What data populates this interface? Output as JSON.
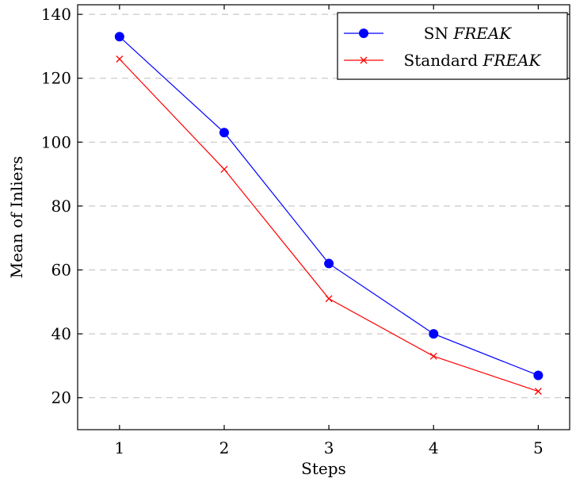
{
  "chart_data": {
    "type": "line",
    "title": "",
    "xlabel": "Steps",
    "ylabel": "Mean of Inliers",
    "x": [
      1,
      2,
      3,
      4,
      5
    ],
    "xlim": [
      0.6,
      5.3
    ],
    "ylim": [
      10,
      143
    ],
    "xticks": [
      "1",
      "2",
      "3",
      "4",
      "5"
    ],
    "yticks": [
      "20",
      "40",
      "60",
      "80",
      "100",
      "120",
      "140"
    ],
    "grid": true,
    "legend_position": "top-right",
    "series": [
      {
        "name": "SN FREAK",
        "name_prefix": "SN",
        "name_italic": "FREAK",
        "values": [
          133,
          103,
          62,
          40,
          27
        ],
        "color": "#0000ff",
        "marker": "circle"
      },
      {
        "name": "Standard FREAK",
        "name_prefix": "Standard",
        "name_italic": "FREAK",
        "values": [
          126,
          91.5,
          51,
          33,
          22
        ],
        "color": "#ff0000",
        "marker": "x"
      }
    ]
  }
}
